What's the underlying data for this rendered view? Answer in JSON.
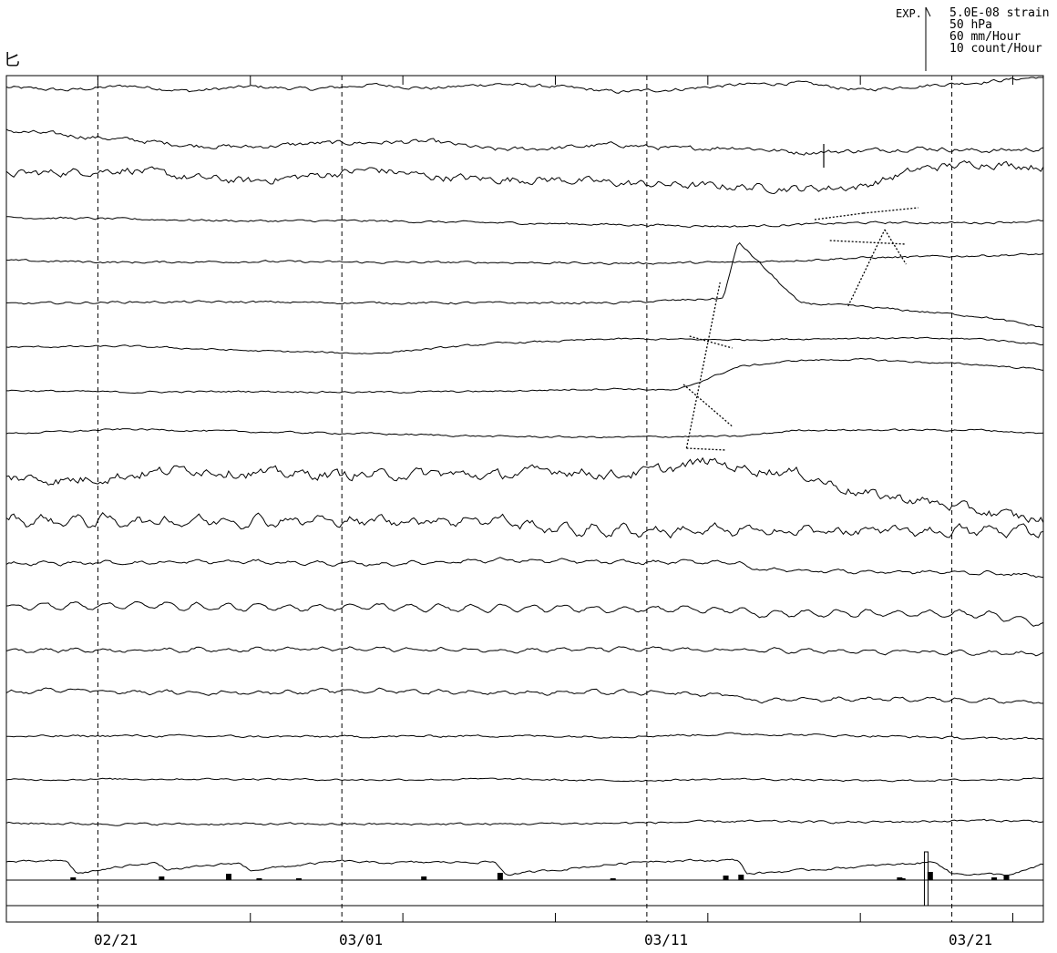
{
  "header": {
    "mark": "匕",
    "exp_label": "EXP.",
    "scale_lines": [
      "5.0E-08 strain",
      "50 hPa",
      "60 mm/Hour",
      "10 count/Hour"
    ]
  },
  "chart_data": {
    "type": "line",
    "title": "",
    "xlabel": "",
    "ylabel": "",
    "x_tick_labels": [
      "02/21",
      "03/01",
      "03/11",
      "03/21"
    ],
    "x_range_days": [
      0,
      34
    ],
    "tick_days": [
      0,
      3,
      8,
      13,
      18,
      23,
      28,
      33
    ],
    "labeled_tick_days": [
      3,
      11,
      21,
      31
    ],
    "dashed_grid_days": [
      3,
      11,
      21,
      31
    ],
    "grid": true,
    "legend": "none",
    "series_colors": [
      "#000000"
    ],
    "traces": [
      {
        "x": [
          0,
          2,
          4,
          6,
          8,
          10,
          12,
          14,
          16,
          18,
          20,
          22,
          24,
          26,
          28,
          30,
          32,
          34
        ],
        "y": [
          0,
          -0.3,
          0.2,
          -0.4,
          0.1,
          -0.2,
          0.3,
          -0.1,
          0.4,
          0.1,
          -0.5,
          -0.2,
          0.3,
          0.5,
          -0.3,
          0.2,
          0.6,
          1.2
        ],
        "noise": 0.15
      },
      {
        "x": [
          0,
          2,
          4,
          6,
          8,
          10,
          12,
          14,
          16,
          18,
          20,
          22,
          24,
          26,
          28,
          30,
          32,
          34
        ],
        "y": [
          0,
          -0.5,
          -1,
          -1.6,
          -1.8,
          -1.4,
          -1.3,
          -1.2,
          -2.1,
          -1.9,
          -1.5,
          -2,
          -1.8,
          -2.4,
          -2.2,
          -1.9,
          -2.2,
          -2
        ],
        "noise": 0.2
      },
      {
        "x": [
          0,
          2,
          4,
          6,
          8,
          10,
          12,
          14,
          16,
          18,
          20,
          22,
          24,
          26,
          28,
          30,
          32,
          34
        ],
        "y": [
          0,
          0.2,
          0.5,
          -0.4,
          -0.8,
          -0.2,
          0.5,
          -0.3,
          -0.6,
          -0.6,
          -1,
          -1.2,
          -1.4,
          -1.6,
          -1.4,
          0.6,
          1.2,
          0.8
        ],
        "noise": 0.35
      },
      {
        "x": [
          0,
          4,
          8,
          12,
          16,
          20,
          24,
          28,
          32,
          34
        ],
        "y": [
          0,
          -0.2,
          -0.4,
          -0.4,
          -0.6,
          -0.8,
          -1,
          -0.6,
          -0.6,
          -0.4
        ],
        "noise": 0.1
      },
      {
        "x": [
          0,
          4,
          8,
          12,
          16,
          20,
          24,
          28,
          30,
          34
        ],
        "y": [
          0,
          -0.2,
          -0.1,
          -0.2,
          -0.2,
          -0.3,
          -0.2,
          0.3,
          0.4,
          0.7
        ],
        "noise": 0.1
      },
      {
        "x": [
          0,
          4,
          8,
          12,
          16,
          20,
          23.5,
          24,
          26,
          28,
          32,
          34
        ],
        "y": [
          0,
          0.2,
          0.2,
          0.1,
          0.1,
          0.1,
          0.6,
          6.8,
          0.1,
          -0.3,
          -1.4,
          -2.6
        ],
        "noise": 0.1
      },
      {
        "x": [
          0,
          4,
          8,
          12,
          16,
          20,
          24,
          28,
          32,
          34
        ],
        "y": [
          0,
          0.1,
          -0.4,
          -0.7,
          0.4,
          0.9,
          0.8,
          1,
          0.9,
          0.3
        ],
        "noise": 0.08
      },
      {
        "x": [
          0,
          4,
          8,
          12,
          16,
          20,
          22,
          24,
          26,
          28,
          32,
          34
        ],
        "y": [
          0,
          -0.2,
          -0.1,
          -0.2,
          -0.1,
          0.2,
          0,
          2.6,
          3.3,
          3.4,
          2.8,
          2.3
        ],
        "noise": 0.08
      },
      {
        "x": [
          0,
          4,
          8,
          12,
          16,
          20,
          22,
          24,
          26,
          28,
          32,
          34
        ],
        "y": [
          0,
          0.5,
          0.2,
          0,
          -0.3,
          -0.4,
          -0.3,
          -0.3,
          0.4,
          0.4,
          0.4,
          0
        ],
        "noise": 0.08
      },
      {
        "x": [
          0,
          2,
          4,
          6,
          8,
          10,
          12,
          14,
          16,
          18,
          20,
          22,
          23,
          24,
          26,
          28,
          30,
          32,
          34
        ],
        "y": [
          0,
          -0.4,
          0.2,
          0.9,
          0.4,
          0.3,
          0.2,
          0.4,
          0.1,
          0.8,
          0.2,
          1,
          1.8,
          1,
          0.4,
          -1.8,
          -2.6,
          -3.8,
          -4.8
        ],
        "noise": 0.45
      },
      {
        "x": [
          0,
          4,
          8,
          12,
          16,
          18,
          20,
          24,
          28,
          32,
          34
        ],
        "y": [
          0,
          -0.1,
          0,
          -0.1,
          0.1,
          -1,
          -1.1,
          -1.2,
          -1.2,
          -1.2,
          -1.1
        ],
        "noise": 0.35,
        "wave": 0.35
      },
      {
        "x": [
          0,
          4,
          8,
          12,
          16,
          20,
          24,
          24.3,
          28,
          32,
          34
        ],
        "y": [
          0,
          0.1,
          0.2,
          -0.1,
          0.4,
          0.1,
          0.2,
          -0.6,
          -0.9,
          -1,
          -1.4
        ],
        "noise": 0.12,
        "wave": 0.12
      },
      {
        "x": [
          0,
          4,
          8,
          12,
          16,
          20,
          24,
          24.3,
          28,
          32,
          34
        ],
        "y": [
          0,
          0.2,
          -0.1,
          0,
          -0.2,
          -0.2,
          -0.3,
          -0.8,
          -0.7,
          -0.8,
          -1.8
        ],
        "noise": 0.12,
        "wave": 0.3
      },
      {
        "x": [
          0,
          4,
          8,
          12,
          16,
          20,
          24,
          28,
          32,
          34
        ],
        "y": [
          0,
          0,
          0.1,
          0.1,
          0,
          0.1,
          0,
          -0.2,
          -0.3,
          -0.4
        ],
        "noise": 0.12,
        "wave": 0.15
      },
      {
        "x": [
          0,
          2,
          4,
          8,
          12,
          16,
          20,
          24,
          24.3,
          28,
          32,
          34
        ],
        "y": [
          0,
          0.5,
          0.1,
          0.1,
          0.3,
          0.1,
          0.1,
          -0.2,
          -0.8,
          -0.6,
          -0.7,
          -1
        ],
        "noise": 0.12,
        "wave": 0.15
      },
      {
        "x": [
          0,
          4,
          8,
          12,
          16,
          20,
          24,
          28,
          32,
          34
        ],
        "y": [
          0,
          0.1,
          0,
          0,
          0.1,
          0,
          0.3,
          0.1,
          -0.2,
          -0.2
        ],
        "noise": 0.1
      },
      {
        "x": [
          0,
          4,
          8,
          12,
          16,
          20,
          24,
          28,
          32,
          34
        ],
        "y": [
          0,
          0.1,
          0.1,
          0,
          0.1,
          -0.1,
          0.1,
          -0.1,
          0,
          0.2
        ],
        "noise": 0.08
      },
      {
        "x": [
          0,
          4,
          8,
          12,
          16,
          20,
          24,
          28,
          32,
          34
        ],
        "y": [
          0,
          -0.1,
          -0.1,
          -0.1,
          -0.1,
          0,
          0.2,
          0.1,
          0.3,
          0.2
        ],
        "noise": 0.1
      },
      {
        "x": [
          0,
          2,
          2.3,
          4.8,
          5.3,
          7.6,
          8,
          11,
          12,
          16,
          16.4,
          21,
          24,
          24.3,
          30.5,
          31,
          33,
          34
        ],
        "y": [
          0.5,
          0.6,
          -0.8,
          0.5,
          -0.4,
          0.4,
          -0.4,
          0.6,
          0.4,
          0.5,
          -0.9,
          0.6,
          0.7,
          -0.8,
          0.5,
          -0.8,
          -0.9,
          0.2
        ],
        "noise": 0.1
      }
    ],
    "dotted_connectors": [
      {
        "x": [
          26.5,
          28.1
        ],
        "y": [
          241,
          234
        ]
      },
      {
        "x": [
          28.1,
          29.9
        ],
        "y": [
          234,
          228
        ]
      },
      {
        "x": [
          27,
          29.5
        ],
        "y": [
          264,
          268
        ]
      },
      {
        "x": [
          27.6,
          28.8
        ],
        "y": [
          336,
          252
        ]
      },
      {
        "x": [
          28.8,
          29.5
        ],
        "y": [
          252,
          290
        ]
      },
      {
        "x": [
          22.4,
          23.8
        ],
        "y": [
          369,
          382
        ]
      },
      {
        "x": [
          22.2,
          23.8
        ],
        "y": [
          422,
          468
        ]
      },
      {
        "x": [
          22.3,
          23.4
        ],
        "y": [
          492,
          310
        ]
      },
      {
        "x": [
          22.3,
          23.6
        ],
        "y": [
          492,
          494
        ]
      }
    ],
    "spike": {
      "x": 26.8,
      "y_top": 158,
      "y_base": 184
    },
    "rain_bars": {
      "x": [
        2.1,
        5,
        7.2,
        8.2,
        9.5,
        13.6,
        16.1,
        19.8,
        23.5,
        24,
        29.2,
        29.3,
        30.2,
        32.3,
        32.7
      ],
      "h": [
        3,
        4,
        7,
        2,
        2,
        4,
        8,
        2,
        5,
        6,
        3,
        2,
        9,
        3,
        5
      ]
    },
    "big_bar": {
      "x": 30.1,
      "y_top": 935,
      "y_bottom": 994
    }
  }
}
